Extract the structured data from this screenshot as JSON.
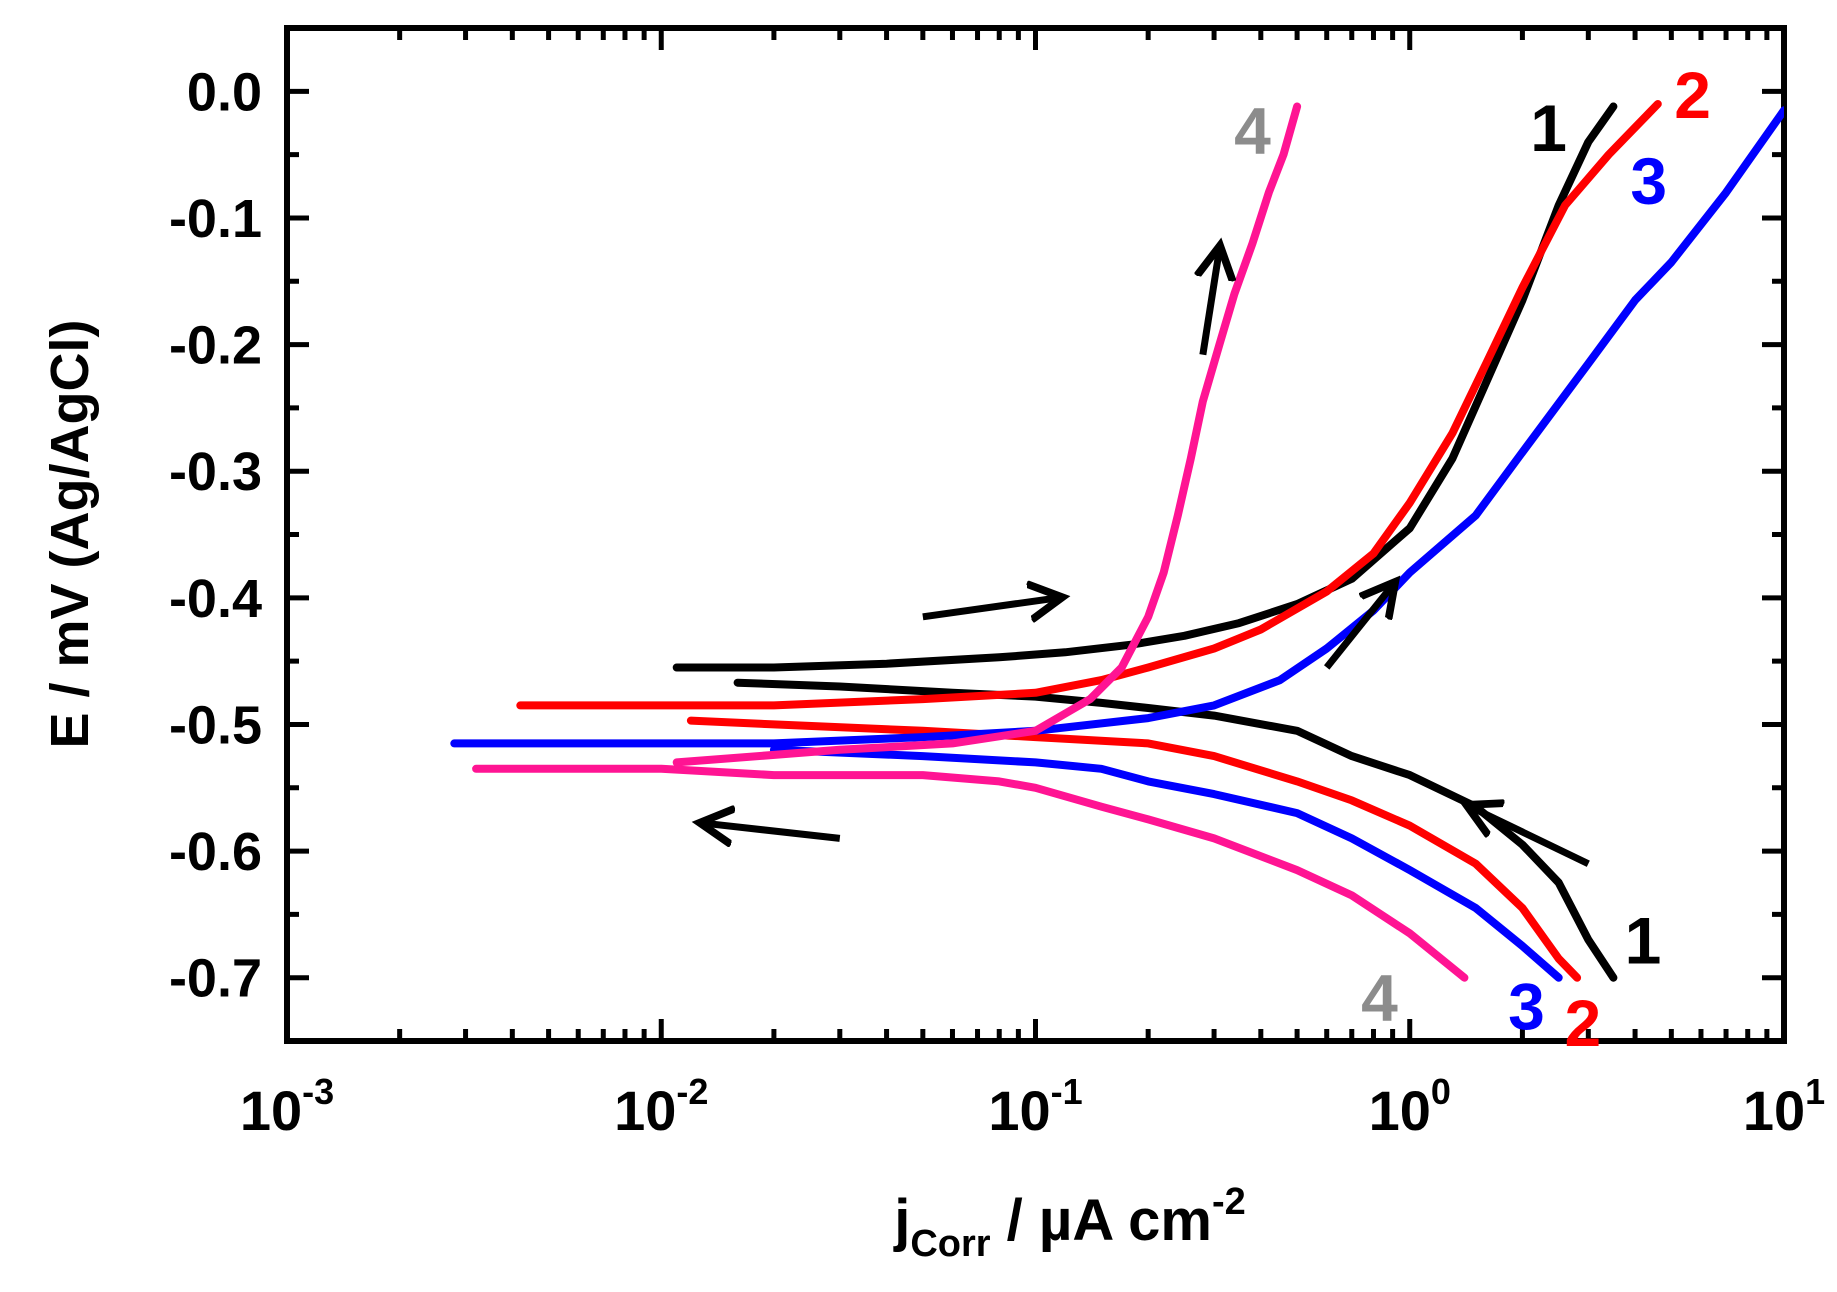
{
  "chart_data": {
    "type": "line",
    "title": "",
    "xlabel": "j_Corr / µA cm^-2",
    "xlabel_parts": {
      "main": "j",
      "sub": "Corr",
      "rest": " / µA cm",
      "sup": "-2"
    },
    "ylabel": "E / mV (Ag/AgCl)",
    "xscale": "log",
    "xlim": [
      0.001,
      10
    ],
    "ylim": [
      -0.75,
      0.05
    ],
    "x_ticks": [
      {
        "value": 0.001,
        "base": "10",
        "exp": "-3"
      },
      {
        "value": 0.01,
        "base": "10",
        "exp": "-2"
      },
      {
        "value": 0.1,
        "base": "10",
        "exp": "-1"
      },
      {
        "value": 1,
        "base": "10",
        "exp": "0"
      },
      {
        "value": 10,
        "base": "10",
        "exp": "1"
      }
    ],
    "y_ticks": [
      {
        "value": 0.0,
        "label": "0.0"
      },
      {
        "value": -0.1,
        "label": "-0.1"
      },
      {
        "value": -0.2,
        "label": "-0.2"
      },
      {
        "value": -0.3,
        "label": "-0.3"
      },
      {
        "value": -0.4,
        "label": "-0.4"
      },
      {
        "value": -0.5,
        "label": "-0.5"
      },
      {
        "value": -0.6,
        "label": "-0.6"
      },
      {
        "value": -0.7,
        "label": "-0.7"
      }
    ],
    "series": [
      {
        "name": "1",
        "color": "#000000",
        "anodic": [
          [
            0.011,
            -0.455
          ],
          [
            0.02,
            -0.455
          ],
          [
            0.04,
            -0.452
          ],
          [
            0.08,
            -0.447
          ],
          [
            0.12,
            -0.443
          ],
          [
            0.18,
            -0.437
          ],
          [
            0.25,
            -0.43
          ],
          [
            0.35,
            -0.42
          ],
          [
            0.5,
            -0.405
          ],
          [
            0.7,
            -0.385
          ],
          [
            1.0,
            -0.345
          ],
          [
            1.3,
            -0.29
          ],
          [
            1.6,
            -0.23
          ],
          [
            2.0,
            -0.165
          ],
          [
            2.5,
            -0.09
          ],
          [
            3.0,
            -0.04
          ],
          [
            3.5,
            -0.012
          ]
        ],
        "cathodic": [
          [
            0.016,
            -0.467
          ],
          [
            0.03,
            -0.47
          ],
          [
            0.06,
            -0.475
          ],
          [
            0.1,
            -0.478
          ],
          [
            0.15,
            -0.483
          ],
          [
            0.2,
            -0.487
          ],
          [
            0.3,
            -0.493
          ],
          [
            0.5,
            -0.505
          ],
          [
            0.7,
            -0.525
          ],
          [
            1.0,
            -0.54
          ],
          [
            1.5,
            -0.565
          ],
          [
            2.0,
            -0.595
          ],
          [
            2.5,
            -0.625
          ],
          [
            3.0,
            -0.67
          ],
          [
            3.5,
            -0.7
          ]
        ]
      },
      {
        "name": "2",
        "color": "#ff0000",
        "anodic": [
          [
            0.0042,
            -0.485
          ],
          [
            0.01,
            -0.485
          ],
          [
            0.02,
            -0.485
          ],
          [
            0.05,
            -0.48
          ],
          [
            0.1,
            -0.475
          ],
          [
            0.15,
            -0.465
          ],
          [
            0.2,
            -0.455
          ],
          [
            0.3,
            -0.44
          ],
          [
            0.4,
            -0.425
          ],
          [
            0.6,
            -0.395
          ],
          [
            0.8,
            -0.365
          ],
          [
            1.0,
            -0.325
          ],
          [
            1.3,
            -0.27
          ],
          [
            1.6,
            -0.215
          ],
          [
            2.0,
            -0.155
          ],
          [
            2.6,
            -0.09
          ],
          [
            3.4,
            -0.05
          ],
          [
            4.6,
            -0.01
          ]
        ],
        "cathodic": [
          [
            0.012,
            -0.497
          ],
          [
            0.02,
            -0.5
          ],
          [
            0.05,
            -0.505
          ],
          [
            0.1,
            -0.51
          ],
          [
            0.2,
            -0.515
          ],
          [
            0.3,
            -0.525
          ],
          [
            0.5,
            -0.545
          ],
          [
            0.7,
            -0.56
          ],
          [
            1.0,
            -0.58
          ],
          [
            1.5,
            -0.61
          ],
          [
            2.0,
            -0.645
          ],
          [
            2.5,
            -0.685
          ],
          [
            2.8,
            -0.7
          ]
        ]
      },
      {
        "name": "3",
        "color": "#0000ff",
        "anodic": [
          [
            0.0028,
            -0.515
          ],
          [
            0.01,
            -0.515
          ],
          [
            0.02,
            -0.515
          ],
          [
            0.05,
            -0.51
          ],
          [
            0.1,
            -0.505
          ],
          [
            0.2,
            -0.495
          ],
          [
            0.3,
            -0.485
          ],
          [
            0.45,
            -0.465
          ],
          [
            0.6,
            -0.44
          ],
          [
            0.8,
            -0.41
          ],
          [
            1.0,
            -0.38
          ],
          [
            1.5,
            -0.335
          ],
          [
            2.0,
            -0.285
          ],
          [
            3.0,
            -0.215
          ],
          [
            4.0,
            -0.165
          ],
          [
            5.0,
            -0.135
          ],
          [
            7.0,
            -0.08
          ],
          [
            10.0,
            -0.015
          ]
        ],
        "cathodic": [
          [
            0.02,
            -0.52
          ],
          [
            0.05,
            -0.525
          ],
          [
            0.1,
            -0.53
          ],
          [
            0.15,
            -0.535
          ],
          [
            0.2,
            -0.545
          ],
          [
            0.3,
            -0.555
          ],
          [
            0.5,
            -0.57
          ],
          [
            0.7,
            -0.59
          ],
          [
            1.0,
            -0.615
          ],
          [
            1.5,
            -0.645
          ],
          [
            2.0,
            -0.675
          ],
          [
            2.5,
            -0.7
          ]
        ]
      },
      {
        "name": "4",
        "color": "#ff1493",
        "anodic": [
          [
            0.011,
            -0.53
          ],
          [
            0.03,
            -0.52
          ],
          [
            0.06,
            -0.515
          ],
          [
            0.1,
            -0.505
          ],
          [
            0.14,
            -0.48
          ],
          [
            0.17,
            -0.455
          ],
          [
            0.2,
            -0.415
          ],
          [
            0.22,
            -0.38
          ],
          [
            0.24,
            -0.335
          ],
          [
            0.26,
            -0.29
          ],
          [
            0.28,
            -0.245
          ],
          [
            0.31,
            -0.2
          ],
          [
            0.34,
            -0.16
          ],
          [
            0.38,
            -0.12
          ],
          [
            0.42,
            -0.08
          ],
          [
            0.46,
            -0.05
          ],
          [
            0.5,
            -0.012
          ]
        ],
        "cathodic": [
          [
            0.0032,
            -0.535
          ],
          [
            0.01,
            -0.535
          ],
          [
            0.02,
            -0.54
          ],
          [
            0.05,
            -0.54
          ],
          [
            0.08,
            -0.545
          ],
          [
            0.1,
            -0.55
          ],
          [
            0.15,
            -0.565
          ],
          [
            0.2,
            -0.575
          ],
          [
            0.3,
            -0.59
          ],
          [
            0.5,
            -0.615
          ],
          [
            0.7,
            -0.635
          ],
          [
            1.0,
            -0.665
          ],
          [
            1.4,
            -0.7
          ]
        ]
      }
    ],
    "annotations": [
      {
        "text": "1",
        "color": "#000000",
        "x": 2.35,
        "y": -0.028
      },
      {
        "text": "2",
        "color": "#ff0000",
        "x": 5.7,
        "y": -0.002
      },
      {
        "text": "3",
        "color": "#0000ff",
        "x": 4.35,
        "y": -0.07
      },
      {
        "text": "4",
        "color": "#8c8c8c",
        "x": 0.38,
        "y": -0.03
      },
      {
        "text": "1",
        "color": "#000000",
        "x": 4.2,
        "y": -0.67
      },
      {
        "text": "2",
        "color": "#ff0000",
        "x": 2.9,
        "y": -0.735
      },
      {
        "text": "3",
        "color": "#0000ff",
        "x": 2.05,
        "y": -0.722
      },
      {
        "text": "4",
        "color": "#8c8c8c",
        "x": 0.83,
        "y": -0.715
      }
    ],
    "arrows": [
      {
        "direction": "up-right",
        "from": [
          0.05,
          -0.415
        ],
        "to": [
          0.115,
          -0.4
        ],
        "color": "#000000"
      },
      {
        "direction": "up",
        "from": [
          0.28,
          -0.208
        ],
        "to": [
          0.31,
          -0.125
        ],
        "color": "#000000"
      },
      {
        "direction": "up-right",
        "from": [
          0.6,
          -0.455
        ],
        "to": [
          0.9,
          -0.39
        ],
        "color": "#000000"
      },
      {
        "direction": "up-left",
        "from": [
          3.0,
          -0.61
        ],
        "to": [
          1.45,
          -0.565
        ],
        "color": "#000000"
      },
      {
        "direction": "left",
        "from": [
          0.03,
          -0.59
        ],
        "to": [
          0.013,
          -0.578
        ],
        "color": "#000000"
      }
    ]
  }
}
